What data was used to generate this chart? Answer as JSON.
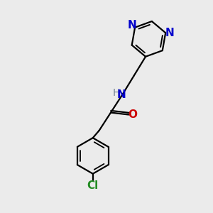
{
  "bg_color": "#ebebeb",
  "bond_color": "#000000",
  "N_color": "#0000cc",
  "O_color": "#cc0000",
  "Cl_color": "#228b22",
  "H_color": "#708090",
  "line_width": 1.6,
  "font_size": 11,
  "figsize": [
    3.0,
    3.0
  ],
  "dpi": 100,
  "xlim": [
    0,
    10
  ],
  "ylim": [
    0,
    10
  ]
}
